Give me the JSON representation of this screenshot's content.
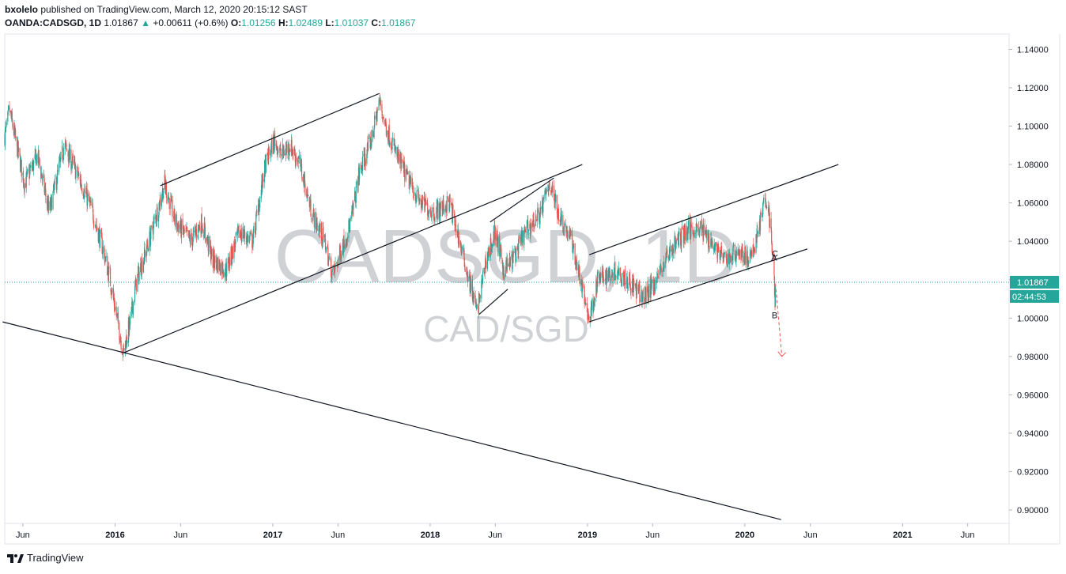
{
  "header": {
    "author": "bxolelo",
    "published_text": "published on TradingView.com, March 12, 2020 20:15:12 SAST",
    "symbol": "OANDA:CADSGD, 1D",
    "last": "1.01867",
    "change_arrow": "▲",
    "change": "+0.00611 (+0.6%)",
    "o_label": "O:",
    "o_value": "1.01256",
    "h_label": "H:",
    "h_value": "1.02489",
    "l_label": "L:",
    "l_value": "1.01037",
    "c_label": "C:",
    "c_value": "1.01867"
  },
  "watermark": {
    "symbol": "CADSGD, 1D",
    "pair": "CAD/SGD"
  },
  "footer": {
    "brand": "TradingView",
    "logo_icon": "tradingview-logo-icon"
  },
  "colors": {
    "up": "#26a69a",
    "down": "#ef5350",
    "axis_badge": "#26a69a",
    "grid": "#e0e3eb",
    "text": "#131722"
  },
  "chart_data": {
    "type": "candlestick",
    "symbol": "OANDA:CADSGD",
    "interval": "1D",
    "price_range": [
      0.893,
      1.148
    ],
    "y_ticks": [
      "1.14000",
      "1.12000",
      "1.10000",
      "1.08000",
      "1.06000",
      "1.04000",
      "1.02000",
      "1.00000",
      "0.98000",
      "0.96000",
      "0.94000",
      "0.92000",
      "0.90000"
    ],
    "time_range": [
      "2015-04-20",
      "2021-09-05"
    ],
    "x_ticks": [
      {
        "label": "Jun",
        "date": "2015-06-01"
      },
      {
        "label": "2016",
        "date": "2016-01-01"
      },
      {
        "label": "Jun",
        "date": "2016-06-01"
      },
      {
        "label": "2017",
        "date": "2017-01-01"
      },
      {
        "label": "Jun",
        "date": "2017-06-01"
      },
      {
        "label": "2018",
        "date": "2018-01-01"
      },
      {
        "label": "Jun",
        "date": "2018-06-01"
      },
      {
        "label": "2019",
        "date": "2019-01-01"
      },
      {
        "label": "Jun",
        "date": "2019-06-01"
      },
      {
        "label": "2020",
        "date": "2020-01-01"
      },
      {
        "label": "Jun",
        "date": "2020-06-01"
      },
      {
        "label": "2021",
        "date": "2021-01-01"
      },
      {
        "label": "Jun",
        "date": "2021-06-01"
      }
    ],
    "price_path": [
      [
        "2015-04-20",
        1.095
      ],
      [
        "2015-05-01",
        1.108
      ],
      [
        "2015-06-05",
        1.07
      ],
      [
        "2015-07-05",
        1.085
      ],
      [
        "2015-08-01",
        1.055
      ],
      [
        "2015-09-05",
        1.09
      ],
      [
        "2015-10-15",
        1.07
      ],
      [
        "2015-11-10",
        1.055
      ],
      [
        "2015-12-05",
        1.035
      ],
      [
        "2015-12-20",
        1.02
      ],
      [
        "2016-01-20",
        0.982
      ],
      [
        "2016-02-05",
        0.998
      ],
      [
        "2016-02-20",
        1.02
      ],
      [
        "2016-03-20",
        1.04
      ],
      [
        "2016-04-25",
        1.07
      ],
      [
        "2016-05-20",
        1.05
      ],
      [
        "2016-06-25",
        1.04
      ],
      [
        "2016-07-20",
        1.05
      ],
      [
        "2016-08-15",
        1.03
      ],
      [
        "2016-09-15",
        1.025
      ],
      [
        "2016-10-15",
        1.045
      ],
      [
        "2016-11-15",
        1.04
      ],
      [
        "2016-12-15",
        1.08
      ],
      [
        "2017-01-05",
        1.093
      ],
      [
        "2017-01-20",
        1.085
      ],
      [
        "2017-02-10",
        1.09
      ],
      [
        "2017-03-05",
        1.08
      ],
      [
        "2017-04-01",
        1.055
      ],
      [
        "2017-05-01",
        1.04
      ],
      [
        "2017-05-20",
        1.022
      ],
      [
        "2017-06-15",
        1.04
      ],
      [
        "2017-07-01",
        1.05
      ],
      [
        "2017-07-20",
        1.075
      ],
      [
        "2017-08-20",
        1.095
      ],
      [
        "2017-09-05",
        1.113
      ],
      [
        "2017-09-20",
        1.1
      ],
      [
        "2017-10-15",
        1.085
      ],
      [
        "2017-11-15",
        1.07
      ],
      [
        "2017-12-10",
        1.06
      ],
      [
        "2018-01-10",
        1.055
      ],
      [
        "2018-02-15",
        1.06
      ],
      [
        "2018-03-10",
        1.04
      ],
      [
        "2018-04-01",
        1.02
      ],
      [
        "2018-04-20",
        1.003
      ],
      [
        "2018-05-10",
        1.03
      ],
      [
        "2018-06-01",
        1.045
      ],
      [
        "2018-06-20",
        1.025
      ],
      [
        "2018-07-10",
        1.03
      ],
      [
        "2018-08-10",
        1.045
      ],
      [
        "2018-09-15",
        1.055
      ],
      [
        "2018-10-05",
        1.071
      ],
      [
        "2018-10-25",
        1.055
      ],
      [
        "2018-11-25",
        1.04
      ],
      [
        "2018-12-20",
        1.015
      ],
      [
        "2019-01-05",
        0.999
      ],
      [
        "2019-01-25",
        1.02
      ],
      [
        "2019-03-10",
        1.025
      ],
      [
        "2019-04-05",
        1.02
      ],
      [
        "2019-05-10",
        1.01
      ],
      [
        "2019-06-10",
        1.02
      ],
      [
        "2019-07-10",
        1.035
      ],
      [
        "2019-08-15",
        1.045
      ],
      [
        "2019-09-15",
        1.048
      ],
      [
        "2019-10-15",
        1.04
      ],
      [
        "2019-11-15",
        1.03
      ],
      [
        "2019-12-15",
        1.035
      ],
      [
        "2020-01-15",
        1.03
      ],
      [
        "2020-02-10",
        1.055
      ],
      [
        "2020-02-22",
        1.063
      ],
      [
        "2020-03-01",
        1.045
      ],
      [
        "2020-03-06",
        1.03
      ],
      [
        "2020-03-09",
        1.02
      ],
      [
        "2020-03-11",
        1.005
      ],
      [
        "2020-03-12",
        1.01867
      ]
    ],
    "trendlines": [
      {
        "p1": [
          "2015-04-15",
          0.998
        ],
        "p2": [
          "2020-03-25",
          0.895
        ]
      },
      {
        "p1": [
          "2016-01-22",
          0.982
        ],
        "p2": [
          "2018-12-20",
          1.08
        ]
      },
      {
        "p1": [
          "2016-04-15",
          1.069
        ],
        "p2": [
          "2017-09-05",
          1.117
        ]
      },
      {
        "p1": [
          "2018-04-25",
          1.002
        ],
        "p2": [
          "2018-06-30",
          1.015
        ]
      },
      {
        "p1": [
          "2018-05-20",
          1.05
        ],
        "p2": [
          "2018-10-15",
          1.073
        ]
      },
      {
        "p1": [
          "2019-01-05",
          0.998
        ],
        "p2": [
          "2020-05-25",
          1.036
        ]
      },
      {
        "p1": [
          "2019-01-05",
          1.033
        ],
        "p2": [
          "2020-08-05",
          1.08
        ]
      }
    ],
    "projection": {
      "from": [
        "2020-03-12",
        1.018
      ],
      "to": [
        "2020-03-27",
        0.98
      ]
    },
    "wave_labels": [
      {
        "text": "A",
        "date": "2020-03-09",
        "price": 1.03
      },
      {
        "text": "B",
        "date": "2020-03-10",
        "price": 1.0
      },
      {
        "text": "C",
        "date": "2020-03-11",
        "price": 1.032
      }
    ],
    "last_price": "1.01867",
    "countdown": "02:44:53"
  }
}
